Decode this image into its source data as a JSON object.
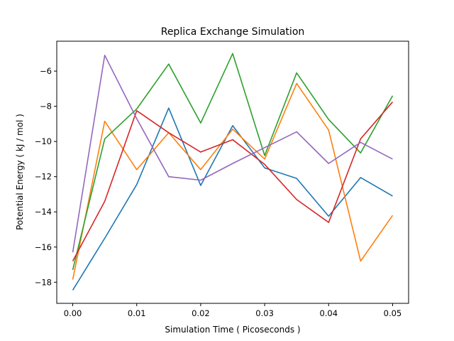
{
  "chart_data": {
    "type": "line",
    "title": "Replica Exchange Simulation",
    "xlabel": "Simulation Time ( Picoseconds )",
    "ylabel": "Potential Energy ( kJ / mol )",
    "xlim": [
      -0.0025,
      0.0525
    ],
    "ylim": [
      -19.2,
      -4.3
    ],
    "x_ticks": [
      0.0,
      0.01,
      0.02,
      0.03,
      0.04,
      0.05
    ],
    "x_tick_labels": [
      "0.00",
      "0.01",
      "0.02",
      "0.03",
      "0.04",
      "0.05"
    ],
    "y_ticks": [
      -18,
      -16,
      -14,
      -12,
      -10,
      -8,
      -6
    ],
    "y_tick_labels": [
      "−18",
      "−16",
      "−14",
      "−12",
      "−10",
      "−8",
      "−6"
    ],
    "grid": false,
    "legend": "none",
    "x": [
      0.0,
      0.005,
      0.01,
      0.015,
      0.02,
      0.025,
      0.03,
      0.035,
      0.04,
      0.045,
      0.05
    ],
    "series": [
      {
        "color": "#1f77b4",
        "values": [
          -18.45,
          -15.5,
          -12.45,
          -8.1,
          -12.5,
          -9.1,
          -11.5,
          -12.1,
          -14.25,
          -12.05,
          -13.1
        ]
      },
      {
        "color": "#ff7f0e",
        "values": [
          -17.85,
          -8.85,
          -11.6,
          -9.5,
          -11.6,
          -9.3,
          -11.0,
          -6.7,
          -9.35,
          -16.8,
          -14.2
        ]
      },
      {
        "color": "#2ca02c",
        "values": [
          -17.3,
          -9.85,
          -8.15,
          -5.6,
          -8.95,
          -5.0,
          -10.8,
          -6.1,
          -8.75,
          -10.65,
          -7.4
        ]
      },
      {
        "color": "#d62728",
        "values": [
          -16.8,
          -13.4,
          -8.25,
          -9.5,
          -10.6,
          -9.9,
          -11.3,
          -13.3,
          -14.6,
          -9.85,
          -7.75
        ]
      },
      {
        "color": "#9467bd",
        "values": [
          -16.3,
          -5.1,
          -8.7,
          -12.0,
          -12.2,
          -11.25,
          -10.35,
          -9.45,
          -11.25,
          -10.05,
          -11.0
        ]
      }
    ]
  }
}
